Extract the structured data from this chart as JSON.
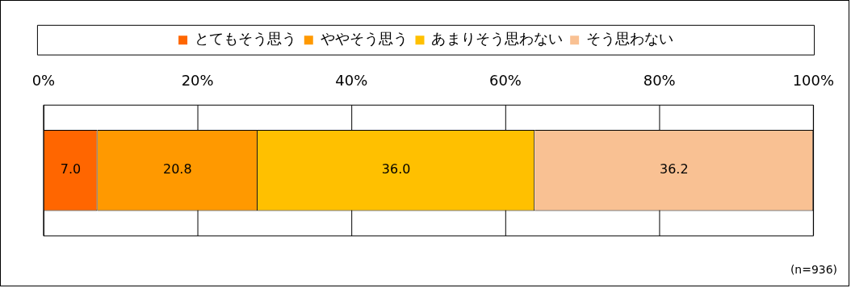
{
  "chart_data": {
    "type": "bar",
    "orientation": "horizontal",
    "stacked": true,
    "categories": [
      null
    ],
    "series": [
      {
        "name": "とてもそう思う",
        "color": "#ff6600",
        "values": [
          7.0
        ],
        "value_labels": [
          "7.0"
        ]
      },
      {
        "name": "ややそう思う",
        "color": "#ff9900",
        "values": [
          20.8
        ],
        "value_labels": [
          "20.8"
        ]
      },
      {
        "name": "あまりそう思わない",
        "color": "#ffc000",
        "values": [
          36.0
        ],
        "value_labels": [
          "36.0"
        ]
      },
      {
        "name": "そう思わない",
        "color": "#f9c193",
        "values": [
          36.2
        ],
        "value_labels": [
          "36.2"
        ]
      }
    ],
    "xlim": [
      0,
      100
    ],
    "xticks": [
      {
        "value": 0,
        "label": "0%"
      },
      {
        "value": 20,
        "label": "20%"
      },
      {
        "value": 40,
        "label": "40%"
      },
      {
        "value": 60,
        "label": "60%"
      },
      {
        "value": 80,
        "label": "80%"
      },
      {
        "value": 100,
        "label": "100%"
      }
    ],
    "tick_labels": "x",
    "grid": "x",
    "legend": "top",
    "annotations": [
      "(n=936)"
    ]
  }
}
